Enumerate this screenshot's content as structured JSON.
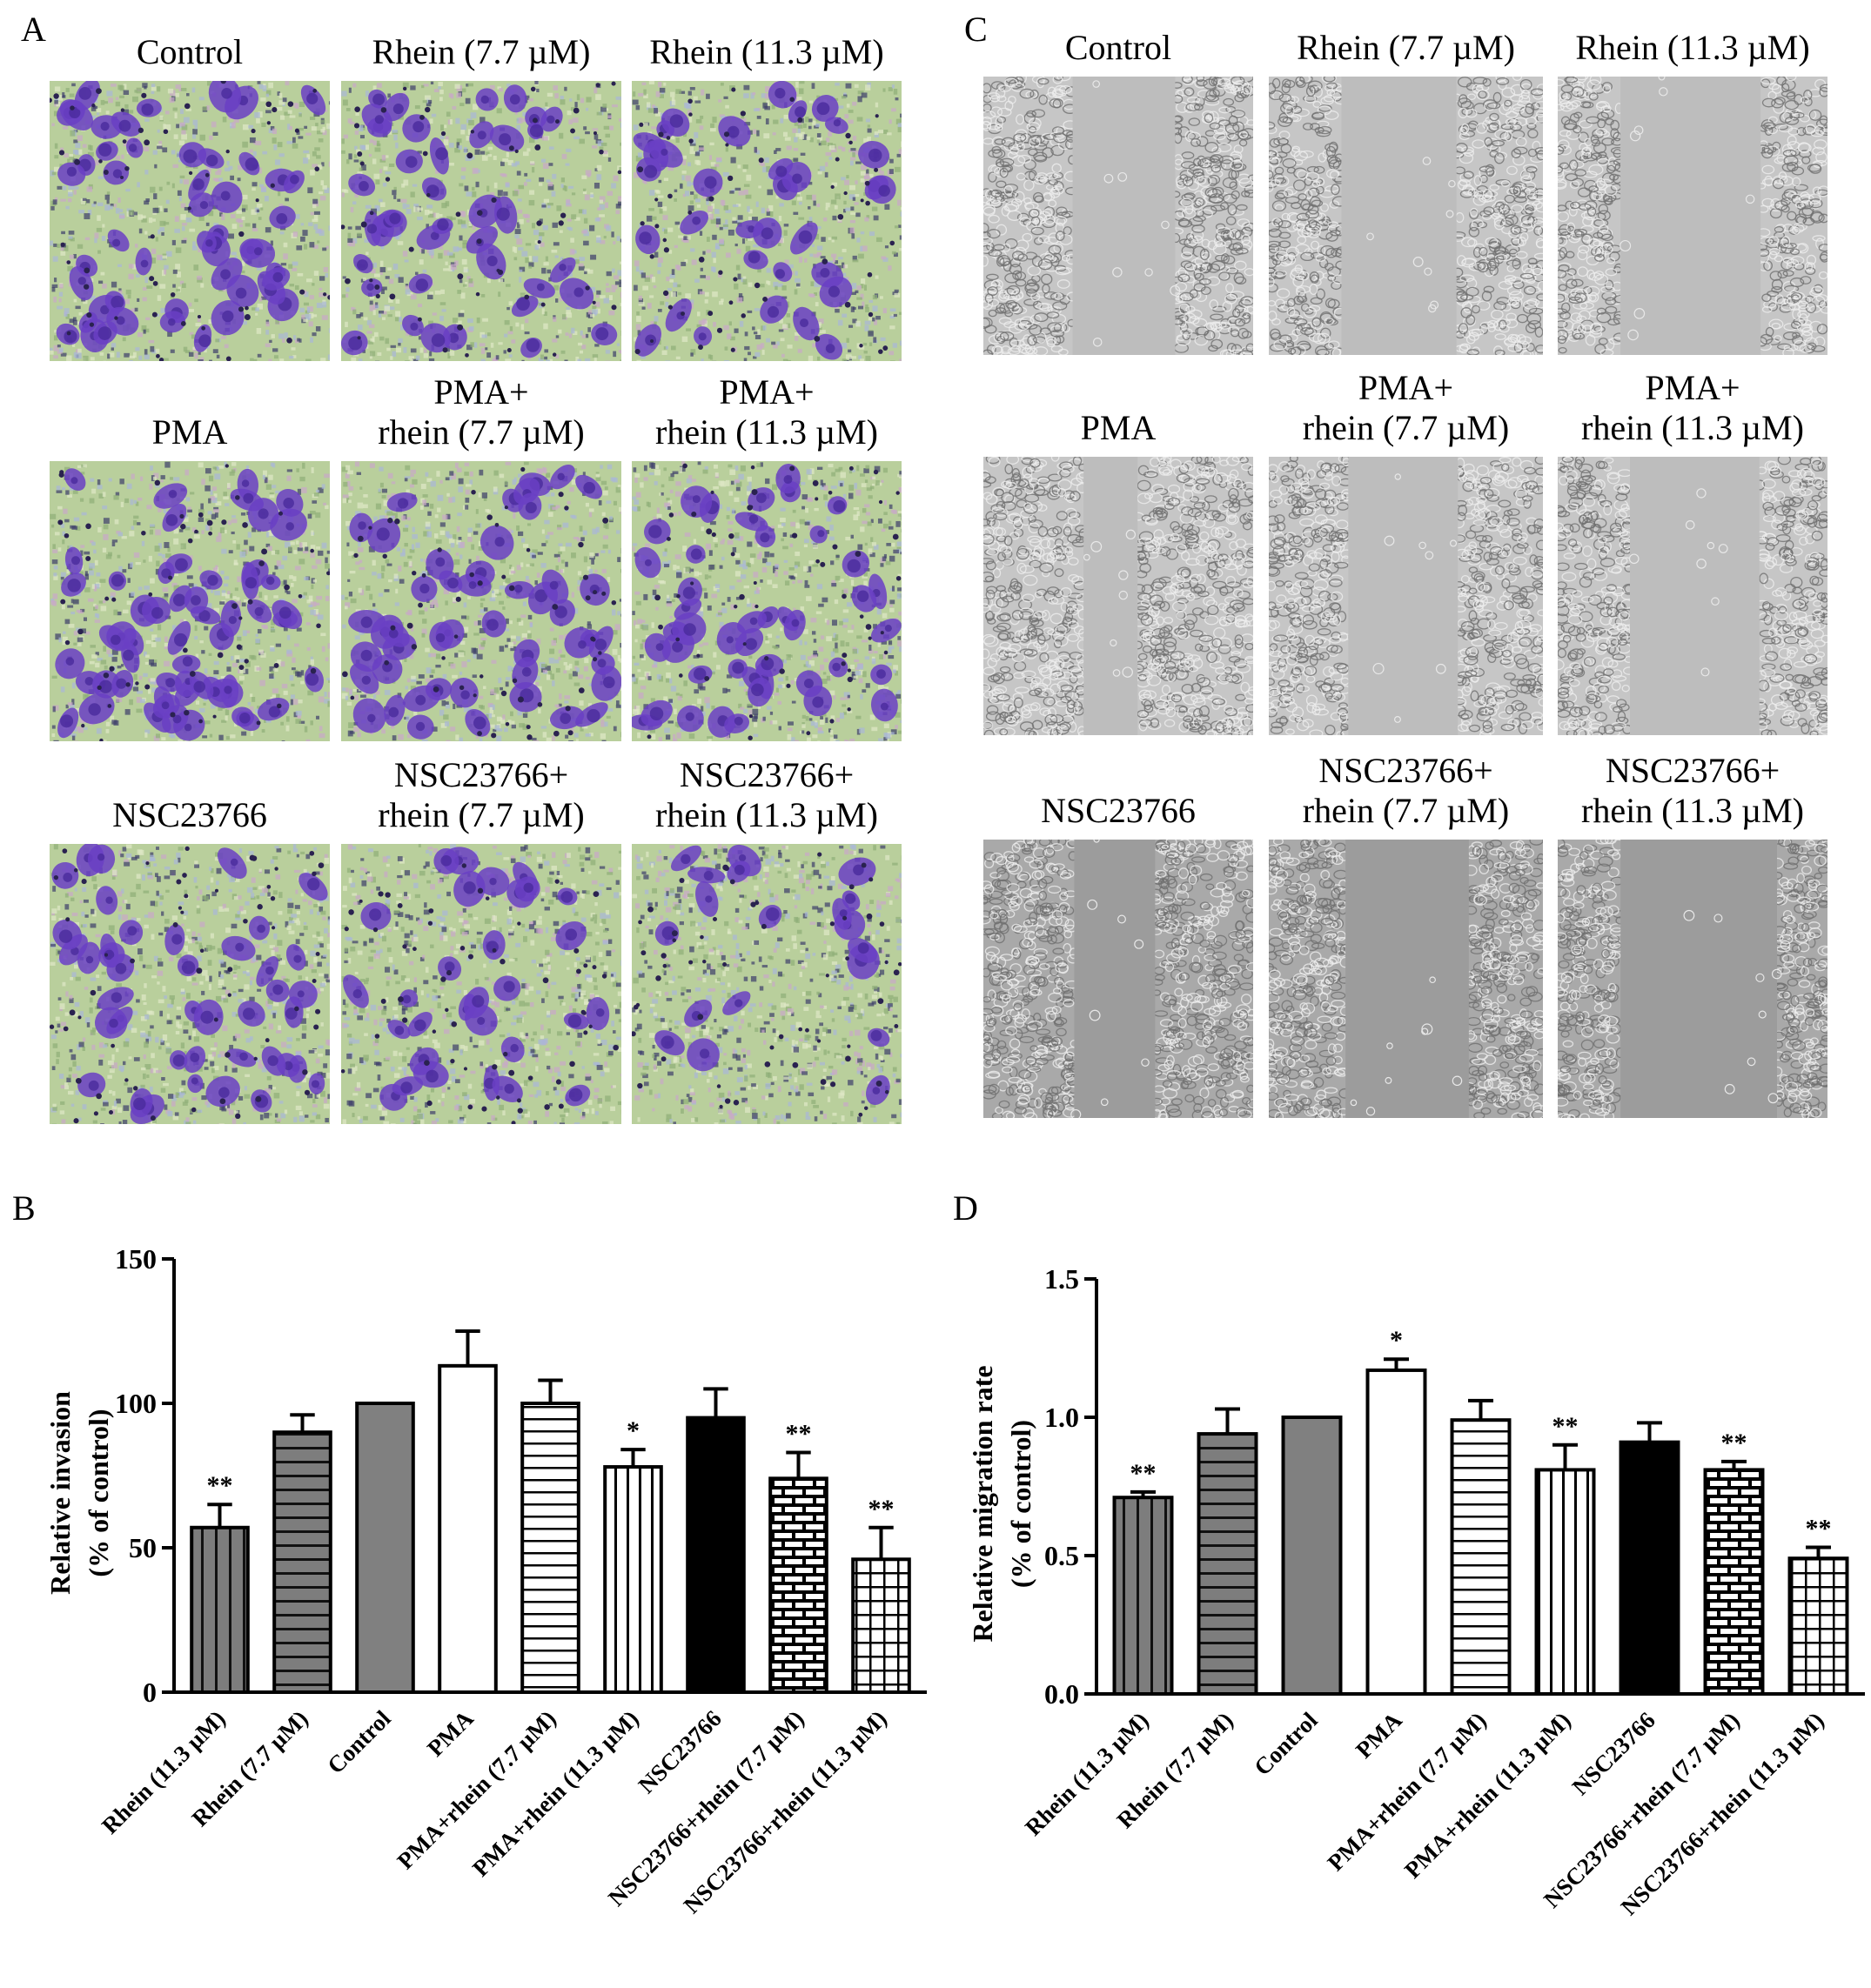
{
  "panels": {
    "A": {
      "letter": "A",
      "rows": [
        {
          "captions": [
            [
              "Control"
            ],
            [
              "Rhein (7.7 µM)"
            ],
            [
              "Rhein (11.3 µM)"
            ]
          ],
          "density": [
            0.9,
            0.7,
            0.6
          ]
        },
        {
          "captions": [
            [
              "PMA"
            ],
            [
              "PMA+",
              "rhein (7.7 µM)"
            ],
            [
              "PMA+",
              "rhein (11.3 µM)"
            ]
          ],
          "density": [
            1.0,
            0.85,
            0.8
          ]
        },
        {
          "captions": [
            [
              "NSC23766"
            ],
            [
              "NSC23766+",
              "rhein (7.7 µM)"
            ],
            [
              "NSC23766+",
              "rhein (11.3 µM)"
            ]
          ],
          "density": [
            0.75,
            0.55,
            0.35
          ]
        }
      ]
    },
    "C": {
      "letter": "C",
      "rows": [
        {
          "captions": [
            [
              "Control"
            ],
            [
              "Rhein (7.7 µM)"
            ],
            [
              "Rhein (11.3 µM)"
            ]
          ],
          "gap": [
            0.38,
            0.42,
            0.52
          ]
        },
        {
          "captions": [
            [
              "PMA"
            ],
            [
              "PMA+",
              "rhein (7.7 µM)"
            ],
            [
              "PMA+",
              "rhein (11.3 µM)"
            ]
          ],
          "gap": [
            0.2,
            0.4,
            0.48
          ]
        },
        {
          "captions": [
            [
              "NSC23766"
            ],
            [
              "NSC23766+",
              "rhein (7.7 µM)"
            ],
            [
              "NSC23766+",
              "rhein (11.3 µM)"
            ]
          ],
          "gap": [
            0.3,
            0.45,
            0.58
          ]
        }
      ]
    },
    "B": {
      "letter": "B"
    },
    "D": {
      "letter": "D"
    }
  },
  "colors": {
    "invasion_stain": "#6a3fc4",
    "membrane_bg": "#b9cf9c",
    "grey_fill": "#808080",
    "black_fill": "#000000"
  },
  "chart_data": [
    {
      "type": "bar",
      "panel": "B",
      "ylabel": [
        "Relative invasion",
        "(% of control)"
      ],
      "ylim": [
        0,
        150
      ],
      "yticks": [
        0,
        50,
        100,
        150
      ],
      "categories": [
        "Rhein (11.3 µM)",
        "Rhein (7.7 µM)",
        "Control",
        "PMA",
        "PMA+rhein (7.7 µM)",
        "PMA+rhein (11.3 µM)",
        "NSC23766",
        "NSC23766+rhein (7.7 µM)",
        "NSC23766+rhein (11.3 µM)"
      ],
      "values": [
        57,
        90,
        100,
        113,
        100,
        78,
        95,
        74,
        46
      ],
      "errors": [
        8,
        6,
        0,
        12,
        8,
        6,
        10,
        9,
        11
      ],
      "significance": [
        "**",
        "",
        "",
        "",
        "",
        "*",
        "",
        "**",
        "**"
      ],
      "patterns": [
        "vlines-grey",
        "hlines-grey",
        "grey",
        "white",
        "hlines",
        "vlines",
        "black",
        "brick",
        "grid"
      ],
      "grid": false
    },
    {
      "type": "bar",
      "panel": "D",
      "ylabel": [
        "Relative migration rate",
        "(% of control)"
      ],
      "ylim": [
        0,
        1.5
      ],
      "yticks": [
        "0.0",
        "0.5",
        "1.0",
        "1.5"
      ],
      "categories": [
        "Rhein (11.3 µM)",
        "Rhein (7.7 µM)",
        "Control",
        "PMA",
        "PMA+rhein (7.7 µM)",
        "PMA+rhein (11.3 µM)",
        "NSC23766",
        "NSC23766+rhein (7.7 µM)",
        "NSC23766+rhein (11.3 µM)"
      ],
      "values": [
        0.71,
        0.94,
        1.0,
        1.17,
        0.99,
        0.81,
        0.91,
        0.81,
        0.49
      ],
      "errors": [
        0.02,
        0.09,
        0,
        0.04,
        0.07,
        0.09,
        0.07,
        0.03,
        0.04
      ],
      "significance": [
        "**",
        "",
        "",
        "*",
        "",
        "**",
        "",
        "**",
        "**"
      ],
      "patterns": [
        "vlines-grey",
        "hlines-grey",
        "grey",
        "white",
        "hlines",
        "vlines",
        "black",
        "brick",
        "grid"
      ],
      "grid": false
    }
  ]
}
